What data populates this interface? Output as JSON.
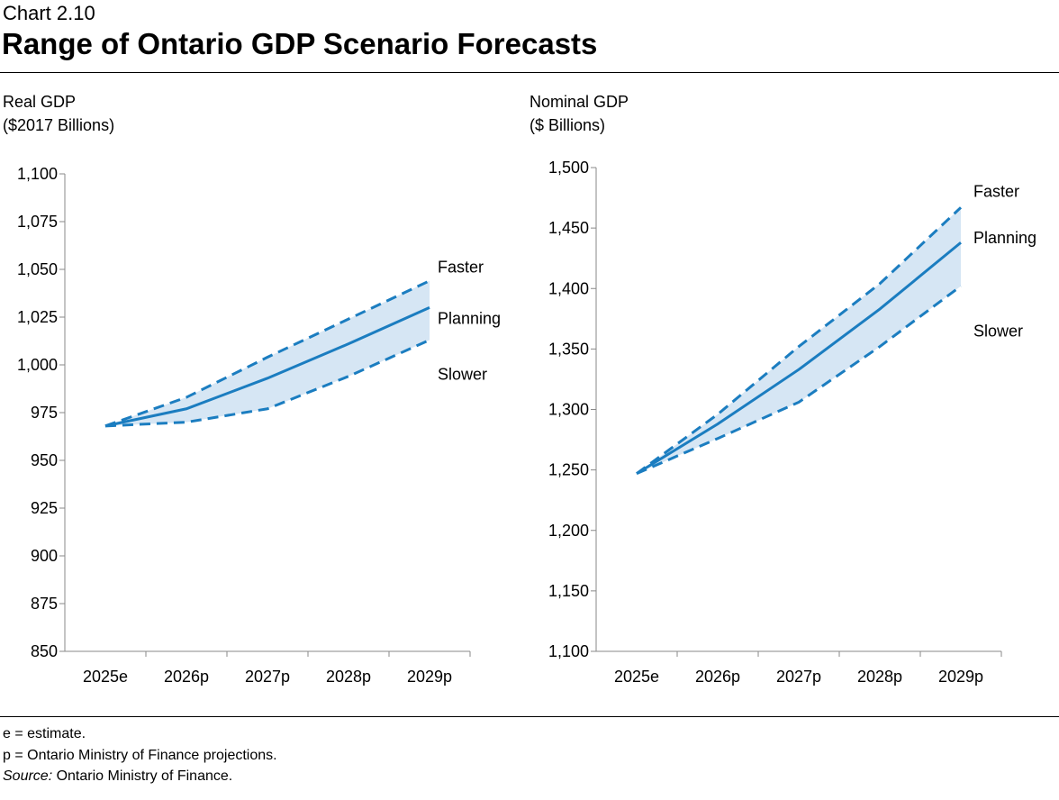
{
  "header": {
    "chart_number": "Chart 2.10",
    "title": "Range of Ontario GDP Scenario Forecasts"
  },
  "footnotes": {
    "e": "e = estimate.",
    "p": "p = Ontario Ministry of Finance projections.",
    "source_label": "Source:",
    "source_text": " Ontario Ministry of Finance."
  },
  "colors": {
    "line": "#1B7DC0",
    "band": "#D6E6F4"
  },
  "chart_data": [
    {
      "type": "line",
      "ylabel_line1": "Real GDP",
      "ylabel_line2": "($2017 Billions)",
      "categories": [
        "2025e",
        "2026p",
        "2027p",
        "2028p",
        "2029p"
      ],
      "ylim": [
        850,
        1100
      ],
      "yticks": [
        850,
        875,
        900,
        925,
        950,
        975,
        1000,
        1025,
        1050,
        1075,
        1100
      ],
      "ytick_labels": [
        "850",
        "875",
        "900",
        "925",
        "950",
        "975",
        "1,000",
        "1,025",
        "1,050",
        "1,075",
        "1,100"
      ],
      "grid": false,
      "series": [
        {
          "name": "Faster",
          "style": "dashed",
          "values": [
            968,
            983,
            1004,
            1024,
            1044
          ]
        },
        {
          "name": "Planning",
          "style": "solid",
          "values": [
            968,
            977,
            993,
            1011,
            1030
          ]
        },
        {
          "name": "Slower",
          "style": "dashed",
          "values": [
            968,
            970,
            977,
            994,
            1013
          ]
        }
      ]
    },
    {
      "type": "line",
      "ylabel_line1": "Nominal GDP",
      "ylabel_line2": "($ Billions)",
      "categories": [
        "2025e",
        "2026p",
        "2027p",
        "2028p",
        "2029p"
      ],
      "ylim": [
        1100,
        1500
      ],
      "yticks": [
        1100,
        1150,
        1200,
        1250,
        1300,
        1350,
        1400,
        1450,
        1500
      ],
      "ytick_labels": [
        "1,100",
        "1,150",
        "1,200",
        "1,250",
        "1,300",
        "1,350",
        "1,400",
        "1,450",
        "1,500"
      ],
      "grid": false,
      "series": [
        {
          "name": "Faster",
          "style": "dashed",
          "values": [
            1247,
            1296,
            1352,
            1404,
            1467
          ]
        },
        {
          "name": "Planning",
          "style": "solid",
          "values": [
            1247,
            1288,
            1333,
            1383,
            1438
          ]
        },
        {
          "name": "Slower",
          "style": "dashed",
          "values": [
            1247,
            1276,
            1306,
            1352,
            1402
          ]
        }
      ]
    }
  ]
}
